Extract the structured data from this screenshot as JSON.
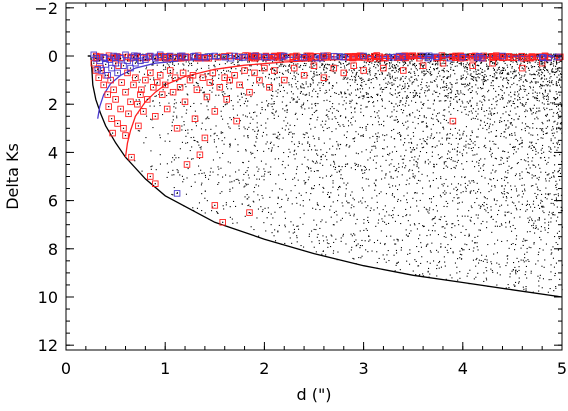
{
  "chart_data": {
    "type": "scatter",
    "xlabel": "d (\")",
    "ylabel": "Delta Ks",
    "xlim": [
      0,
      5
    ],
    "ylim": [
      12.2,
      -2.2
    ],
    "y_inverted": true,
    "xticks": [
      0,
      1,
      2,
      3,
      4,
      5
    ],
    "yticks": [
      -2,
      0,
      2,
      4,
      6,
      8,
      10,
      12
    ],
    "xtick_labels": [
      "0",
      "1",
      "2",
      "3",
      "4",
      "5"
    ],
    "ytick_labels": [
      "−2",
      "0",
      "2",
      "4",
      "6",
      "8",
      "10",
      "12"
    ],
    "grid": false,
    "legend": "none",
    "colors": {
      "background_points": "#000000",
      "red_markers": "#ff2020",
      "blue_markers": "#4a3ad0",
      "black_curve": "#000000",
      "red_curve": "#ff2020",
      "blue_curve": "#4a3ad0"
    },
    "series": [
      {
        "marker": "dot",
        "color": "#000000",
        "x_range": [
          0.6,
          5.0
        ],
        "y_range": [
          -0.1,
          11.0
        ],
        "approx_count": 5000
      },
      {
        "marker": "square",
        "color": "#ff2020",
        "points": [
          [
            0.28,
            0.3
          ],
          [
            0.3,
            0.6
          ],
          [
            0.33,
            0.9
          ],
          [
            0.35,
            0.5
          ],
          [
            0.38,
            1.2
          ],
          [
            0.4,
            0.8
          ],
          [
            0.42,
            1.6
          ],
          [
            0.43,
            2.1
          ],
          [
            0.45,
            1.0
          ],
          [
            0.46,
            2.6
          ],
          [
            0.47,
            3.2
          ],
          [
            0.48,
            1.4
          ],
          [
            0.5,
            1.8
          ],
          [
            0.52,
            2.8
          ],
          [
            0.53,
            0.4
          ],
          [
            0.55,
            2.2
          ],
          [
            0.56,
            1.1
          ],
          [
            0.58,
            3.0
          ],
          [
            0.6,
            1.5
          ],
          [
            0.6,
            3.3
          ],
          [
            0.62,
            0.7
          ],
          [
            0.63,
            2.4
          ],
          [
            0.65,
            1.9
          ],
          [
            0.66,
            4.2
          ],
          [
            0.68,
            1.2
          ],
          [
            0.7,
            0.9
          ],
          [
            0.72,
            2.0
          ],
          [
            0.73,
            2.9
          ],
          [
            0.75,
            1.6
          ],
          [
            0.76,
            1.4
          ],
          [
            0.78,
            2.3
          ],
          [
            0.8,
            1.0
          ],
          [
            0.82,
            1.8
          ],
          [
            0.85,
            5.0
          ],
          [
            0.85,
            0.7
          ],
          [
            0.88,
            1.3
          ],
          [
            0.9,
            5.3
          ],
          [
            0.9,
            2.5
          ],
          [
            0.92,
            1.1
          ],
          [
            0.95,
            0.8
          ],
          [
            0.97,
            1.6
          ],
          [
            1.0,
            1.2
          ],
          [
            1.02,
            2.2
          ],
          [
            1.05,
            0.6
          ],
          [
            1.08,
            1.5
          ],
          [
            1.1,
            0.9
          ],
          [
            1.12,
            3.0
          ],
          [
            1.15,
            1.3
          ],
          [
            1.18,
            0.7
          ],
          [
            1.2,
            1.9
          ],
          [
            1.22,
            4.5
          ],
          [
            1.25,
            1.0
          ],
          [
            1.28,
            0.8
          ],
          [
            1.3,
            2.6
          ],
          [
            1.32,
            1.4
          ],
          [
            1.35,
            4.1
          ],
          [
            1.38,
            0.9
          ],
          [
            1.4,
            3.4
          ],
          [
            1.42,
            1.7
          ],
          [
            1.45,
            1.1
          ],
          [
            1.48,
            0.7
          ],
          [
            1.5,
            6.2
          ],
          [
            1.5,
            2.3
          ],
          [
            1.55,
            1.3
          ],
          [
            1.58,
            6.9
          ],
          [
            1.6,
            0.9
          ],
          [
            1.62,
            1.8
          ],
          [
            1.65,
            1.0
          ],
          [
            1.7,
            0.8
          ],
          [
            1.72,
            2.7
          ],
          [
            1.75,
            1.2
          ],
          [
            1.8,
            0.6
          ],
          [
            1.85,
            6.5
          ],
          [
            1.85,
            1.5
          ],
          [
            1.9,
            0.7
          ],
          [
            1.95,
            1.0
          ],
          [
            2.0,
            0.5
          ],
          [
            2.05,
            1.3
          ],
          [
            2.1,
            0.6
          ],
          [
            2.2,
            1.0
          ],
          [
            2.3,
            0.5
          ],
          [
            2.4,
            0.8
          ],
          [
            2.5,
            0.4
          ],
          [
            2.6,
            0.9
          ],
          [
            2.7,
            0.5
          ],
          [
            2.8,
            0.7
          ],
          [
            2.9,
            0.4
          ],
          [
            3.0,
            0.6
          ],
          [
            3.2,
            0.5
          ],
          [
            3.4,
            0.6
          ],
          [
            3.6,
            0.4
          ],
          [
            3.8,
            0.3
          ],
          [
            3.9,
            2.7
          ],
          [
            4.1,
            0.4
          ],
          [
            4.3,
            0.3
          ],
          [
            4.6,
            0.5
          ],
          [
            4.8,
            0.3
          ]
        ]
      },
      {
        "marker": "square",
        "color": "#4a3ad0",
        "points": [
          [
            0.28,
            -0.05
          ],
          [
            0.3,
            0.1
          ],
          [
            0.32,
            0.55
          ],
          [
            0.34,
            0.2
          ],
          [
            0.36,
            0.6
          ],
          [
            0.38,
            0.05
          ],
          [
            0.4,
            0.35
          ],
          [
            0.42,
            0.8
          ],
          [
            0.44,
            0.15
          ],
          [
            0.46,
            0.5
          ],
          [
            0.48,
            0.0
          ],
          [
            0.5,
            0.3
          ],
          [
            0.52,
            0.7
          ],
          [
            0.55,
            0.1
          ],
          [
            0.58,
            0.4
          ],
          [
            0.6,
            -0.05
          ],
          [
            0.62,
            0.2
          ],
          [
            0.65,
            0.5
          ],
          [
            0.68,
            0.05
          ],
          [
            0.7,
            0.3
          ],
          [
            0.72,
            0.0
          ],
          [
            0.75,
            0.2
          ],
          [
            0.78,
            0.05
          ],
          [
            0.8,
            0.15
          ],
          [
            0.85,
            0.0
          ],
          [
            0.9,
            0.1
          ],
          [
            0.95,
            -0.05
          ],
          [
            1.0,
            0.05
          ],
          [
            1.05,
            0.0
          ],
          [
            1.1,
            0.1
          ],
          [
            1.12,
            5.7
          ],
          [
            1.15,
            0.0
          ],
          [
            1.2,
            0.05
          ],
          [
            1.3,
            0.0
          ],
          [
            1.4,
            0.05
          ],
          [
            1.5,
            0.0
          ],
          [
            1.6,
            0.05
          ],
          [
            1.7,
            0.0
          ],
          [
            1.8,
            0.05
          ],
          [
            1.9,
            0.0
          ],
          [
            2.0,
            0.05
          ],
          [
            2.2,
            0.0
          ],
          [
            2.4,
            0.05
          ],
          [
            2.6,
            0.0
          ],
          [
            2.8,
            0.05
          ],
          [
            3.0,
            0.0
          ],
          [
            3.3,
            0.05
          ],
          [
            3.6,
            0.0
          ],
          [
            4.0,
            0.05
          ],
          [
            4.4,
            0.0
          ],
          [
            4.8,
            0.05
          ]
        ]
      }
    ],
    "curves": [
      {
        "color": "#000000",
        "x": [
          0.22,
          0.25,
          0.26,
          0.27,
          0.3,
          0.35,
          0.4,
          0.5,
          0.6,
          0.8,
          1.0,
          1.5,
          2.0,
          2.5,
          3.0,
          3.5,
          4.0,
          4.5,
          5.0
        ],
        "y": [
          0.0,
          0.0,
          0.5,
          1.2,
          1.8,
          2.4,
          2.9,
          3.6,
          4.2,
          5.1,
          5.8,
          6.9,
          7.6,
          8.2,
          8.7,
          9.1,
          9.4,
          9.7,
          10.0
        ]
      },
      {
        "color": "#ff2020",
        "x": [
          0.6,
          0.62,
          0.65,
          0.7,
          0.8,
          0.9,
          1.0,
          1.2,
          1.5,
          1.8,
          2.2,
          2.6,
          3.0,
          3.5,
          4.0,
          4.5,
          5.0
        ],
        "y": [
          4.2,
          3.6,
          3.1,
          2.5,
          1.9,
          1.5,
          1.2,
          0.85,
          0.55,
          0.38,
          0.25,
          0.17,
          0.12,
          0.08,
          0.06,
          0.04,
          0.03
        ]
      },
      {
        "color": "#4a3ad0",
        "x": [
          0.32,
          0.34,
          0.38,
          0.45,
          0.55,
          0.7,
          0.9,
          1.2,
          1.6,
          2.0,
          3.0,
          4.0,
          5.0
        ],
        "y": [
          2.6,
          2.1,
          1.6,
          1.15,
          0.8,
          0.5,
          0.3,
          0.18,
          0.1,
          0.06,
          0.03,
          0.02,
          0.01
        ]
      }
    ]
  }
}
